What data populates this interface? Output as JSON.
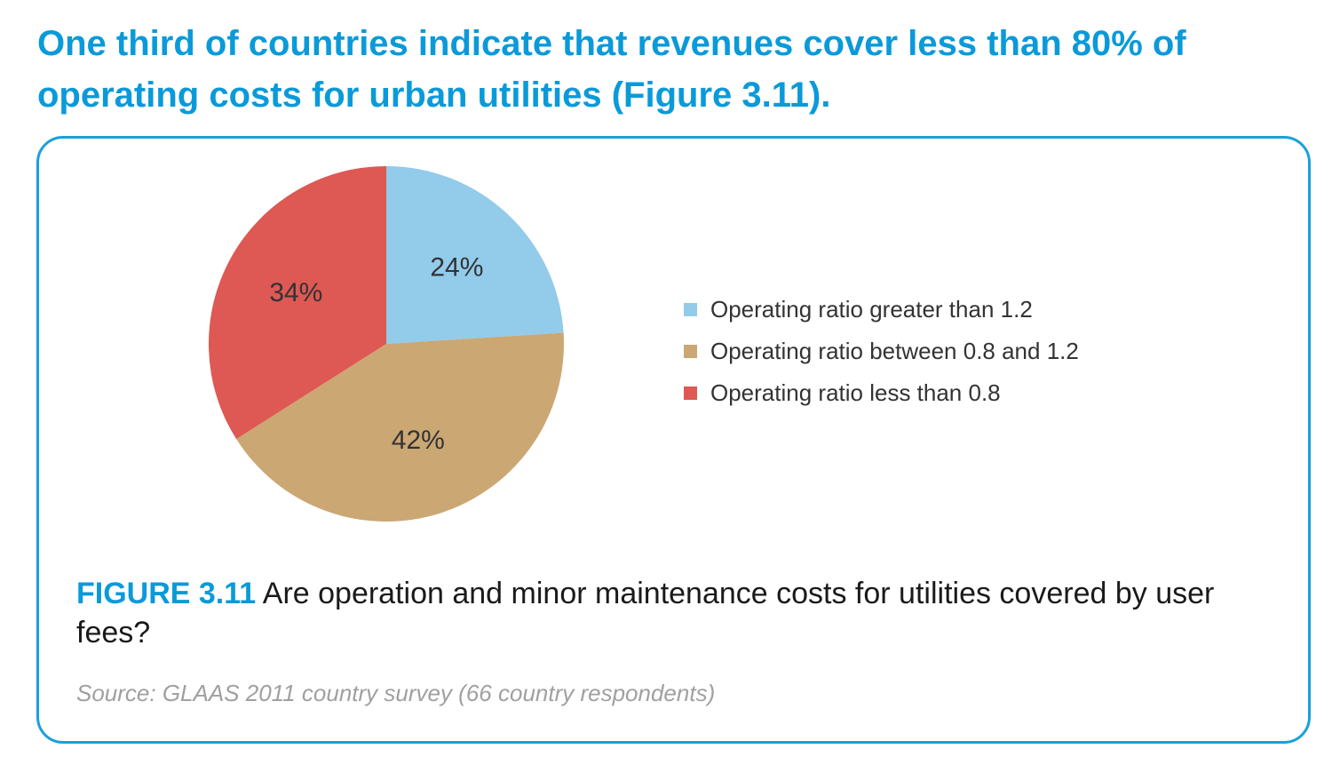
{
  "headline": "One third of countries indicate that revenues cover less than 80% of operating costs for urban utilities (Figure 3.11).",
  "figure": {
    "label": "FIGURE 3.11",
    "caption": "Are operation and minor maintenance costs for utilities covered by user fees?",
    "source": "Source: GLAAS 2011 country survey (66 country respondents)"
  },
  "colors": {
    "accent": "#0a9ad9",
    "border": "#1aa0dc"
  },
  "chart_data": {
    "type": "pie",
    "slices": [
      {
        "label": "Operating ratio greater than 1.2",
        "value": 24,
        "display": "24%",
        "color": "#93cbea"
      },
      {
        "label": "Operating ratio between 0.8 and 1.2",
        "value": 42,
        "display": "42%",
        "color": "#cba774"
      },
      {
        "label": "Operating ratio less than 0.8",
        "value": 34,
        "display": "34%",
        "color": "#de5854"
      }
    ],
    "start_angle_deg": 0,
    "direction": "clockwise",
    "legend_position": "right"
  }
}
